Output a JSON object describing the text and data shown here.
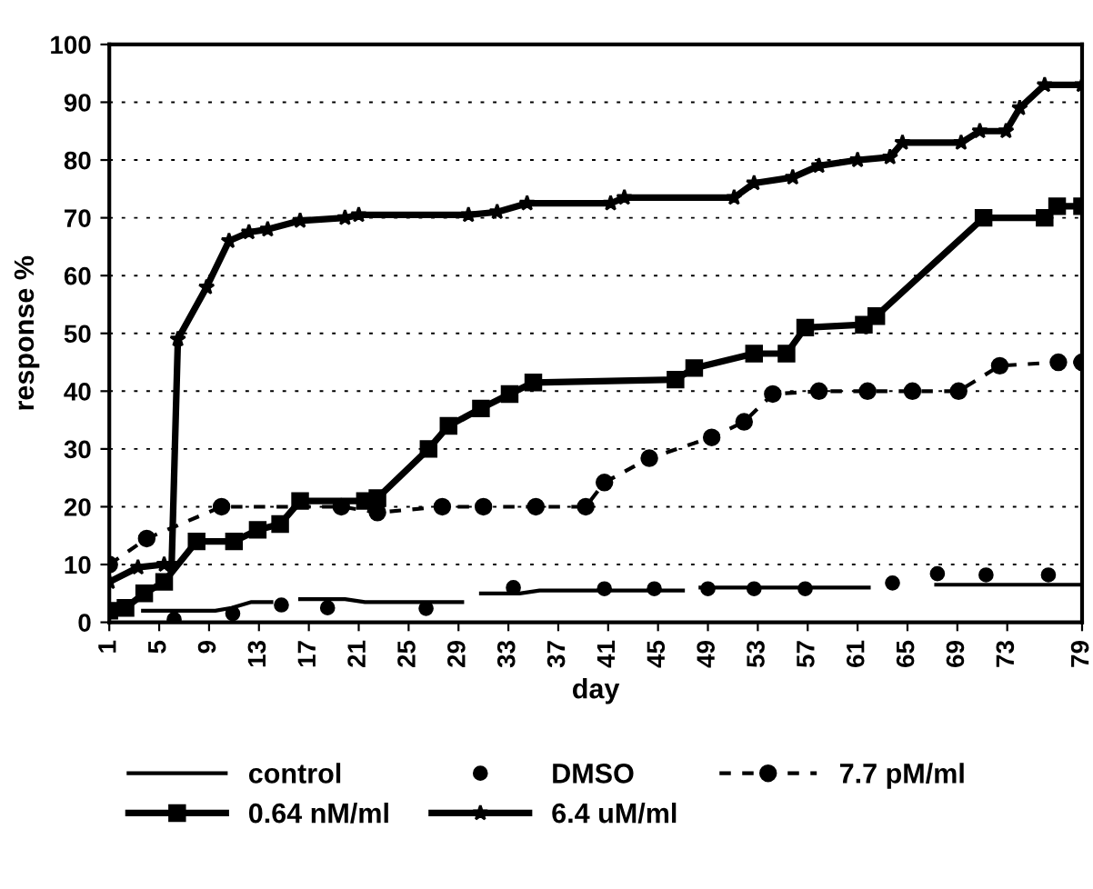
{
  "chart_data": {
    "type": "line",
    "xlabel": "day",
    "ylabel": "response %",
    "xlim": [
      1,
      79
    ],
    "ylim": [
      0,
      100
    ],
    "xticks": [
      1,
      5,
      9,
      13,
      17,
      21,
      25,
      29,
      33,
      37,
      41,
      45,
      49,
      53,
      57,
      61,
      65,
      69,
      73,
      79
    ],
    "yticks": [
      0,
      10,
      20,
      30,
      40,
      50,
      60,
      70,
      80,
      90,
      100
    ],
    "grid": "y",
    "legend": "bottom",
    "series": [
      {
        "name": "control",
        "color": "#000000",
        "line_style": "solid",
        "marker": "none",
        "x": [
          3.7,
          9.5,
          10.8,
          12.4,
          14,
          15,
          16.3,
          19.9,
          21.5,
          29.3,
          30,
          30.8,
          33.9,
          35.5,
          47,
          48,
          48.4,
          61.9,
          64,
          67.3,
          79
        ],
        "values": [
          2,
          2,
          2.5,
          3.5,
          3.5,
          null,
          4,
          4,
          3.5,
          3.5,
          null,
          5,
          5,
          5.5,
          5.5,
          null,
          6,
          6,
          null,
          6.5,
          6.5
        ]
      },
      {
        "name": "DMSO",
        "color": "#000000",
        "type": "scatter",
        "marker": "circle",
        "x": [
          6.2,
          10.9,
          14.8,
          18.5,
          26.4,
          33.4,
          40.7,
          44.7,
          49,
          52.7,
          56.8,
          63.8,
          67.4,
          71.3,
          76.3
        ],
        "values": [
          0.5,
          1.5,
          3,
          2.5,
          2.4,
          6,
          5.8,
          5.8,
          5.8,
          5.8,
          5.8,
          6.8,
          8.4,
          8.2,
          8.2
        ]
      },
      {
        "name": "7.7 pM/ml",
        "color": "#000000",
        "line_style": "dashed",
        "marker": "circle",
        "x": [
          1,
          4,
          10,
          19.6,
          22.5,
          27.7,
          31,
          35.2,
          39.2,
          40.7,
          44.3,
          49.3,
          51.9,
          54.2,
          57.9,
          61.8,
          65.4,
          69.1,
          72.4,
          77.1,
          79
        ],
        "values": [
          10,
          14.5,
          20,
          20,
          19,
          20,
          20,
          20,
          20,
          24.2,
          28.4,
          32,
          34.7,
          39.5,
          40,
          40,
          40,
          40,
          44.4,
          45,
          45
        ]
      },
      {
        "name": "0.64 nM/ml",
        "color": "#000000",
        "line_style": "solid",
        "marker": "square",
        "x": [
          1,
          2.3,
          3.8,
          5.4,
          8,
          11,
          12.9,
          14.7,
          16.3,
          21.5,
          22.5,
          26.6,
          28.2,
          30.8,
          33.1,
          35,
          46.4,
          47.9,
          52.7,
          55.3,
          56.8,
          61.5,
          62.5,
          71.1,
          76,
          77,
          79
        ],
        "values": [
          2,
          2.5,
          5,
          7,
          14,
          14,
          16,
          17,
          21,
          21,
          21.5,
          30,
          34,
          37,
          39.5,
          41.5,
          42,
          44,
          46.5,
          46.5,
          51,
          51.5,
          53,
          70,
          70,
          72,
          72
        ]
      },
      {
        "name": "6.4 uM/ml",
        "color": "#000000",
        "line_style": "solid",
        "marker": "star",
        "x": [
          1,
          3.3,
          5.4,
          6,
          6.5,
          8.8,
          10.6,
          12.2,
          13.7,
          16.3,
          19.9,
          21,
          29.8,
          32.1,
          34.5,
          41.2,
          42.3,
          51.1,
          52.7,
          55.8,
          57.9,
          61,
          63.6,
          64.6,
          69.3,
          70.8,
          72.9,
          74,
          76,
          79
        ],
        "values": [
          7,
          9.5,
          10,
          10,
          49,
          58,
          66,
          67.5,
          68,
          69.5,
          70,
          70.5,
          70.5,
          71,
          72.5,
          72.5,
          73.5,
          73.5,
          76,
          77,
          79,
          80,
          80.5,
          83,
          83,
          85,
          85,
          89,
          93,
          93
        ]
      }
    ]
  }
}
